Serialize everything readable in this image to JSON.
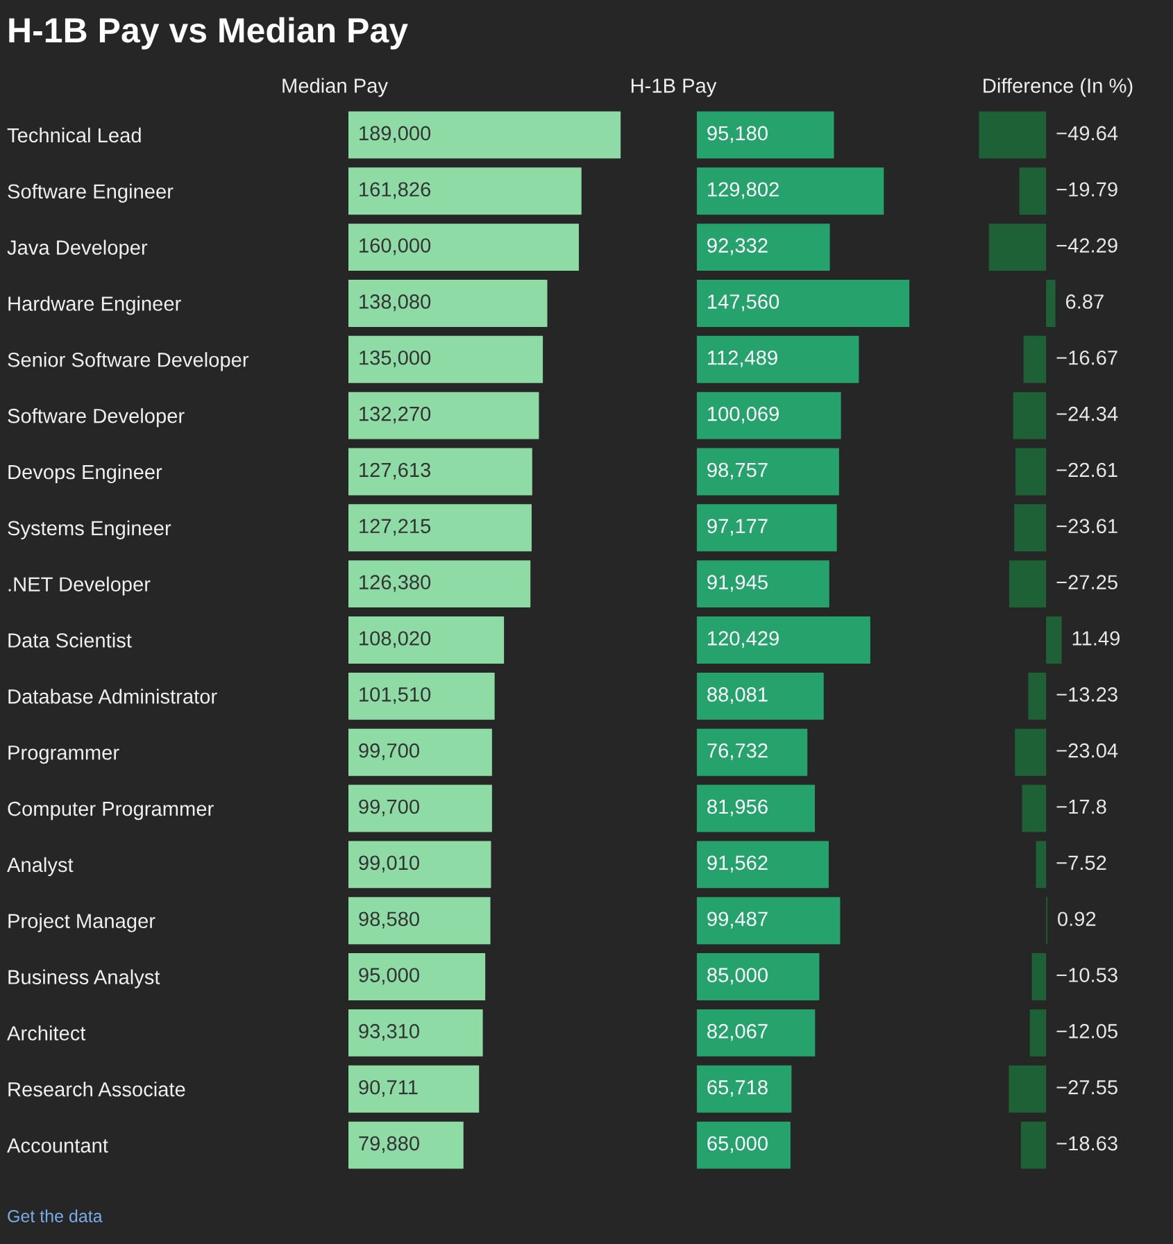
{
  "chart_data": [
    {
      "type": "bar",
      "orientation": "horizontal",
      "title": "H-1B Pay vs Median Pay",
      "xlabel": "Median Pay",
      "tick_labels": "y",
      "color": "#8fdba6",
      "categories": [
        "Technical Lead",
        "Software Engineer",
        "Java Developer",
        "Hardware Engineer",
        "Senior Software Developer",
        "Software Developer",
        "Devops Engineer",
        "Systems Engineer",
        ".NET Developer",
        "Data Scientist",
        "Database Administrator",
        "Programmer",
        "Computer Programmer",
        "Analyst",
        "Project Manager",
        "Business Analyst",
        "Architect",
        "Research Associate",
        "Accountant"
      ],
      "values": [
        189000,
        161826,
        160000,
        138080,
        135000,
        132270,
        127613,
        127215,
        126380,
        108020,
        101510,
        99700,
        99700,
        99010,
        98580,
        95000,
        93310,
        90711,
        79880
      ],
      "value_labels": [
        "189,000",
        "161,826",
        "160,000",
        "138,080",
        "135,000",
        "132,270",
        "127,613",
        "127,215",
        "126,380",
        "108,020",
        "101,510",
        "99,700",
        "99,700",
        "99,010",
        "98,580",
        "95,000",
        "93,310",
        "90,711",
        "79,880"
      ],
      "annotations": [
        "Get the data"
      ]
    },
    {
      "type": "bar",
      "orientation": "horizontal",
      "xlabel": "H-1B Pay",
      "tick_labels": false,
      "color": "#26a36d",
      "categories": [
        null,
        null,
        null,
        null,
        null,
        null,
        null,
        null,
        null,
        null,
        null,
        null,
        null,
        null,
        null,
        null,
        null,
        null,
        null
      ],
      "values": [
        95180,
        129802,
        92332,
        147560,
        112489,
        100069,
        98757,
        97177,
        91945,
        120429,
        88081,
        76732,
        81956,
        91562,
        99487,
        85000,
        82067,
        65718,
        65000
      ],
      "value_labels": [
        "95,180",
        "129,802",
        "92,332",
        "147,560",
        "112,489",
        "100,069",
        "98,757",
        "97,177",
        "91,945",
        "120,429",
        "88,081",
        "76,732",
        "81,956",
        "91,562",
        "99,487",
        "85,000",
        "82,067",
        "65,718",
        "65,000"
      ]
    },
    {
      "type": "bar",
      "orientation": "horizontal",
      "xlabel": "Difference (In %)",
      "tick_labels": false,
      "color": "#1f6137",
      "categories": [
        null,
        null,
        null,
        null,
        null,
        null,
        null,
        null,
        null,
        null,
        null,
        null,
        null,
        null,
        null,
        null,
        null,
        null,
        null
      ],
      "values": [
        -49.64,
        -19.79,
        -42.29,
        6.87,
        -16.67,
        -24.34,
        -22.61,
        -23.61,
        -27.25,
        11.49,
        -13.23,
        -23.04,
        -17.8,
        -7.52,
        0.92,
        -10.53,
        -12.05,
        -27.55,
        -18.63
      ],
      "value_labels": [
        "−49.64",
        "−19.79",
        "−42.29",
        "6.87",
        "−16.67",
        "−24.34",
        "−22.61",
        "−23.61",
        "−27.25",
        "11.49",
        "−13.23",
        "−23.04",
        "−17.8",
        "−7.52",
        "0.92",
        "−10.53",
        "−12.05",
        "−27.55",
        "−18.63"
      ]
    }
  ]
}
